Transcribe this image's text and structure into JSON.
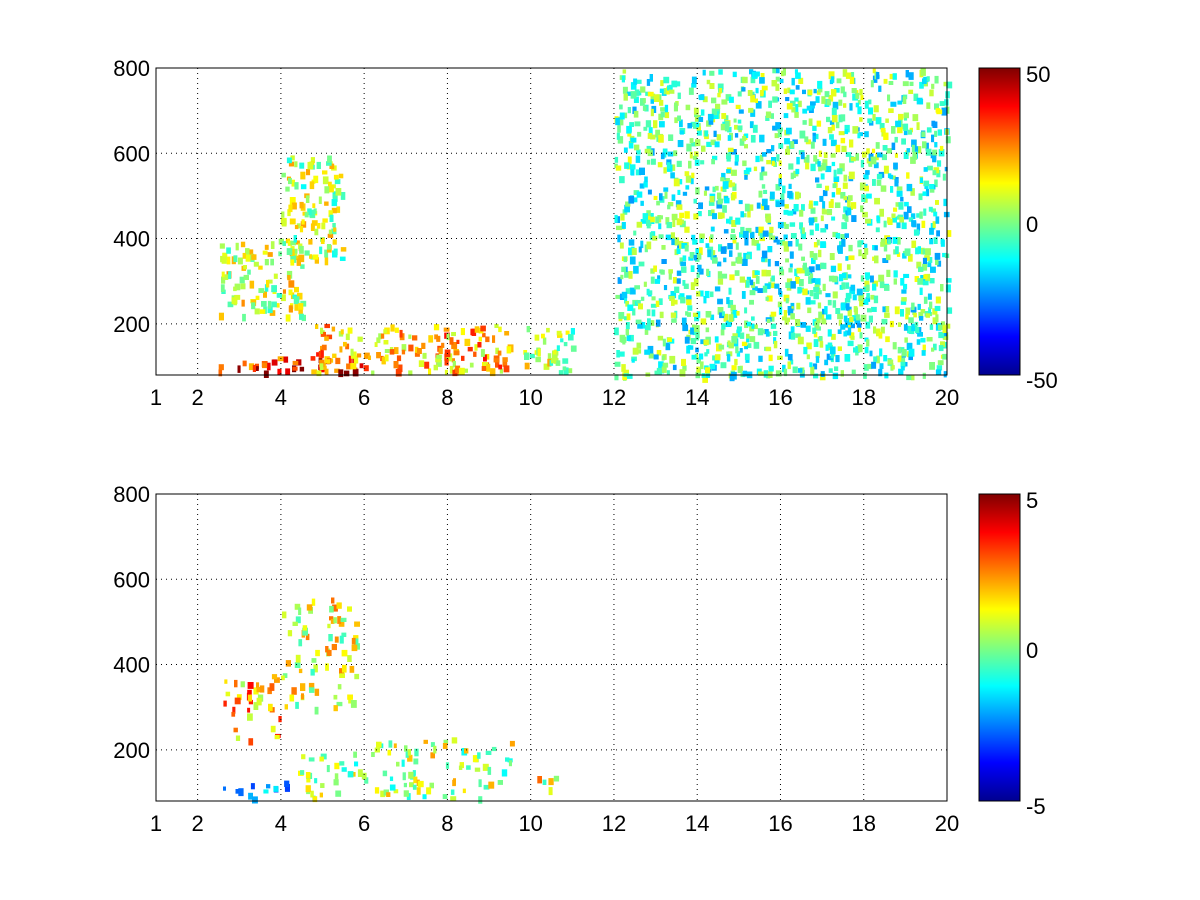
{
  "chart_data": [
    {
      "type": "heatmap",
      "x_ticks": [
        "1",
        "2",
        "4",
        "6",
        "8",
        "10",
        "12",
        "14",
        "16",
        "18",
        "20"
      ],
      "x_tick_values": [
        1,
        2,
        4,
        6,
        8,
        10,
        12,
        14,
        16,
        18,
        20
      ],
      "y_ticks": [
        "200",
        "400",
        "600",
        "800"
      ],
      "y_tick_values": [
        200,
        400,
        600,
        800
      ],
      "xlim": [
        1,
        20
      ],
      "ylim": [
        80,
        800
      ],
      "grid": true,
      "colormap": "jet",
      "colorbar": {
        "ticks": [
          "50",
          "0",
          "-50"
        ],
        "tick_values": [
          50,
          0,
          -50
        ],
        "clim": [
          -50,
          50
        ]
      },
      "features": [
        {
          "x": [
            2.5,
            6.0
          ],
          "y": [
            90,
            130
          ],
          "value": 35
        },
        {
          "x": [
            4.8,
            9.5
          ],
          "y": [
            90,
            200
          ],
          "value": 20
        },
        {
          "x": [
            2.5,
            4.5
          ],
          "y": [
            220,
            400
          ],
          "value": 8
        },
        {
          "x": [
            4.0,
            5.5
          ],
          "y": [
            350,
            600
          ],
          "value": 5
        },
        {
          "x": [
            9.8,
            11.0
          ],
          "y": [
            90,
            200
          ],
          "value": 5
        },
        {
          "x": [
            12.0,
            20.0
          ],
          "y": [
            80,
            800
          ],
          "value": -5
        }
      ]
    },
    {
      "type": "heatmap",
      "x_ticks": [
        "1",
        "2",
        "4",
        "6",
        "8",
        "10",
        "12",
        "14",
        "16",
        "18",
        "20"
      ],
      "x_tick_values": [
        1,
        2,
        4,
        6,
        8,
        10,
        12,
        14,
        16,
        18,
        20
      ],
      "y_ticks": [
        "200",
        "400",
        "600",
        "800"
      ],
      "y_tick_values": [
        200,
        400,
        600,
        800
      ],
      "xlim": [
        1,
        20
      ],
      "ylim": [
        80,
        800
      ],
      "grid": true,
      "colormap": "jet",
      "colorbar": {
        "ticks": [
          "5",
          "0",
          "-5"
        ],
        "tick_values": [
          5,
          0,
          -5
        ],
        "clim": [
          -5,
          5
        ]
      },
      "features": [
        {
          "x": [
            2.6,
            4.4
          ],
          "y": [
            90,
            130
          ],
          "value": -2
        },
        {
          "x": [
            4.4,
            6.2
          ],
          "y": [
            90,
            200
          ],
          "value": 0.5
        },
        {
          "x": [
            6.2,
            9.5
          ],
          "y": [
            90,
            230
          ],
          "value": 0.5
        },
        {
          "x": [
            2.6,
            4.0
          ],
          "y": [
            220,
            380
          ],
          "value": 2
        },
        {
          "x": [
            4.0,
            5.8
          ],
          "y": [
            300,
            560
          ],
          "value": 1
        },
        {
          "x": [
            10.0,
            10.6
          ],
          "y": [
            110,
            160
          ],
          "value": 1
        }
      ]
    }
  ]
}
